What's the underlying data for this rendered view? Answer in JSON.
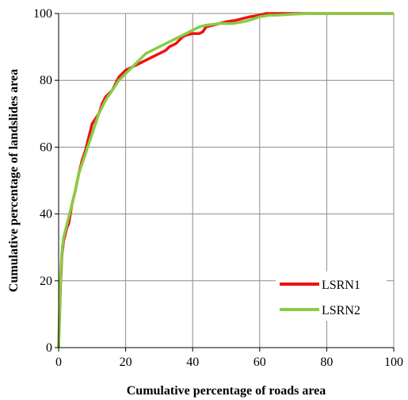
{
  "chart_data": {
    "type": "line",
    "title": "",
    "xlabel": "Cumulative percentage of roads area",
    "ylabel": "Cumulative percentage of landslides area",
    "xlim": [
      0,
      100
    ],
    "ylim": [
      0,
      100
    ],
    "xticks": [
      "0",
      "20",
      "40",
      "60",
      "80",
      "100"
    ],
    "yticks": [
      "0",
      "20",
      "40",
      "60",
      "80",
      "100"
    ],
    "grid": true,
    "legend_position": "bottom-right",
    "series": [
      {
        "name": "LSRN1",
        "color": "#ee1111",
        "points": [
          [
            0,
            0
          ],
          [
            0.3,
            10
          ],
          [
            0.6,
            20
          ],
          [
            1,
            28
          ],
          [
            1.5,
            32
          ],
          [
            2,
            34
          ],
          [
            2.5,
            36
          ],
          [
            3,
            37
          ],
          [
            3.5,
            40
          ],
          [
            4,
            43
          ],
          [
            5,
            47
          ],
          [
            6,
            52
          ],
          [
            7,
            56
          ],
          [
            8,
            59
          ],
          [
            9,
            63
          ],
          [
            10,
            67
          ],
          [
            12,
            70
          ],
          [
            13,
            73
          ],
          [
            14,
            75
          ],
          [
            16,
            77
          ],
          [
            17,
            79
          ],
          [
            18,
            81
          ],
          [
            19,
            82
          ],
          [
            20,
            83
          ],
          [
            22,
            84
          ],
          [
            24,
            85
          ],
          [
            26,
            86
          ],
          [
            28,
            87
          ],
          [
            30,
            88
          ],
          [
            32,
            89
          ],
          [
            33,
            90
          ],
          [
            35,
            91
          ],
          [
            36,
            92
          ],
          [
            37,
            93
          ],
          [
            38,
            93.5
          ],
          [
            40,
            94
          ],
          [
            42,
            94
          ],
          [
            43,
            94.5
          ],
          [
            44,
            96
          ],
          [
            46,
            96.5
          ],
          [
            48,
            97
          ],
          [
            50,
            97.5
          ],
          [
            53,
            98
          ],
          [
            55,
            98.5
          ],
          [
            57,
            99
          ],
          [
            60,
            99.5
          ],
          [
            62,
            100
          ],
          [
            65,
            100
          ],
          [
            75,
            100
          ],
          [
            90,
            100
          ],
          [
            100,
            100
          ]
        ]
      },
      {
        "name": "LSRN2",
        "color": "#88cc44",
        "points": [
          [
            0,
            0
          ],
          [
            0.3,
            12
          ],
          [
            0.6,
            22
          ],
          [
            1,
            29
          ],
          [
            1.5,
            33
          ],
          [
            2,
            35
          ],
          [
            3,
            39
          ],
          [
            4,
            43
          ],
          [
            5,
            47
          ],
          [
            6,
            52
          ],
          [
            7,
            55
          ],
          [
            8,
            58
          ],
          [
            9,
            61
          ],
          [
            10,
            64
          ],
          [
            11,
            67
          ],
          [
            12,
            70
          ],
          [
            13,
            72
          ],
          [
            14,
            74
          ],
          [
            16,
            77
          ],
          [
            18,
            80
          ],
          [
            20,
            82
          ],
          [
            22,
            84
          ],
          [
            24,
            86
          ],
          [
            26,
            88
          ],
          [
            28,
            89
          ],
          [
            30,
            90
          ],
          [
            32,
            91
          ],
          [
            34,
            92
          ],
          [
            36,
            93
          ],
          [
            38,
            94
          ],
          [
            40,
            95
          ],
          [
            42,
            96
          ],
          [
            44,
            96.5
          ],
          [
            48,
            97
          ],
          [
            50,
            97
          ],
          [
            52,
            97
          ],
          [
            55,
            97.5
          ],
          [
            57,
            98
          ],
          [
            60,
            99
          ],
          [
            63,
            99.5
          ],
          [
            65,
            99.5
          ],
          [
            70,
            99.8
          ],
          [
            75,
            100
          ],
          [
            85,
            100
          ],
          [
            100,
            100
          ]
        ]
      }
    ]
  }
}
